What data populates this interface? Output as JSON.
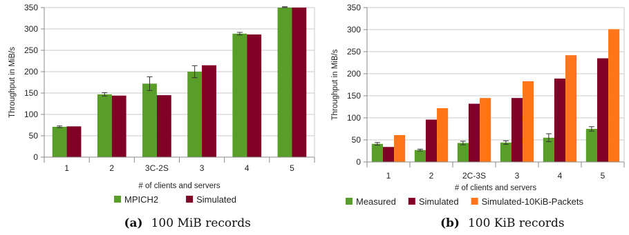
{
  "colors": {
    "measured": "#5a9e2a",
    "simulated": "#800026",
    "simulated_packets": "#ff7518",
    "grid": "#c8c8c8",
    "axis": "#8a8a8a",
    "errorbar": "#333333"
  },
  "chart_data": [
    {
      "type": "bar",
      "caption_label": "(a)",
      "caption_text": "100 MiB records",
      "xlabel": "# of clients and servers",
      "ylabel": "Throughput in MiB/s",
      "ylim": [
        0,
        350
      ],
      "yticks": [
        0,
        50,
        100,
        150,
        200,
        250,
        300,
        350
      ],
      "grid": true,
      "legend_position": "bottom",
      "categories": [
        "1",
        "2",
        "3C-2S",
        "3",
        "4",
        "5"
      ],
      "series": [
        {
          "name": "MPICH2",
          "color_key": "measured",
          "values": [
            71,
            147,
            172,
            200,
            289,
            355
          ],
          "errors": [
            2,
            4,
            16,
            14,
            3,
            3
          ]
        },
        {
          "name": "Simulated",
          "color_key": "simulated",
          "values": [
            72,
            144,
            145,
            215,
            287,
            358
          ]
        }
      ]
    },
    {
      "type": "bar",
      "caption_label": "(b)",
      "caption_text": "100 KiB records",
      "xlabel": "# of clients and servers",
      "ylabel": "Throughput in MiB/s",
      "ylim": [
        0,
        350
      ],
      "yticks": [
        0,
        50,
        100,
        150,
        200,
        250,
        300,
        350
      ],
      "grid": true,
      "legend_position": "bottom",
      "categories": [
        "1",
        "2",
        "2C-3S",
        "3",
        "4",
        "5"
      ],
      "series": [
        {
          "name": "Measured",
          "color_key": "measured",
          "values": [
            41,
            27,
            43,
            44,
            55,
            75
          ],
          "errors": [
            3,
            2,
            4,
            4,
            9,
            5
          ]
        },
        {
          "name": "Simulated",
          "color_key": "simulated",
          "values": [
            34,
            96,
            132,
            145,
            189,
            235
          ]
        },
        {
          "name": "Simulated-10KiB-Packets",
          "color_key": "simulated_packets",
          "values": [
            61,
            122,
            145,
            183,
            242,
            301
          ]
        }
      ]
    }
  ]
}
